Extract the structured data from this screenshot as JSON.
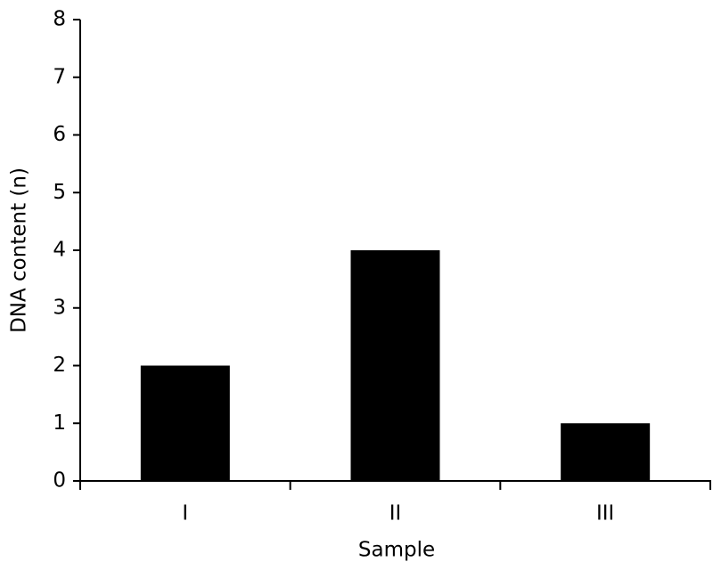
{
  "chart_data": {
    "type": "bar",
    "categories": [
      "I",
      "II",
      "III"
    ],
    "values": [
      2,
      4,
      1
    ],
    "color": "#000000",
    "x_label": "Sample",
    "y_label": "DNA content (n)",
    "ylim": [
      0,
      8
    ],
    "yticks": [
      0,
      1,
      2,
      3,
      4,
      5,
      6,
      7,
      8
    ],
    "grid": false
  }
}
